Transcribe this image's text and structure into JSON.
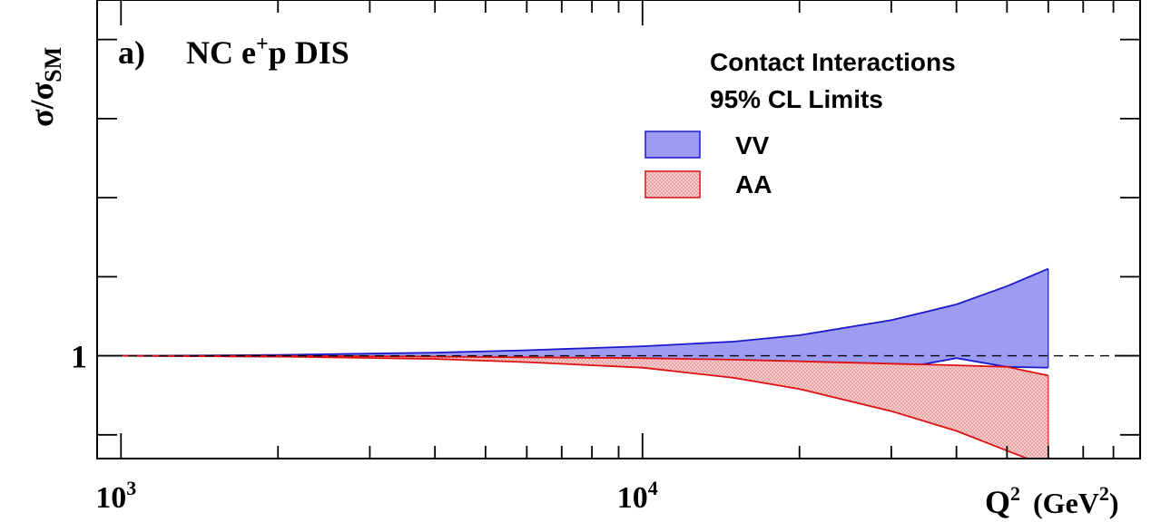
{
  "chart_data": {
    "type": "area",
    "panel_label": "a)",
    "title_parts": {
      "pre": "NC e",
      "sup": "+",
      "post": "p DIS"
    },
    "ylabel": {
      "main": "σ/σ",
      "sub": "SM"
    },
    "xlabel": {
      "q": "Q",
      "q_sup": "2",
      "unit_pre": "(GeV",
      "unit_sup": "2",
      "unit_post": ")"
    },
    "x_scale": "log",
    "xlim": [
      900,
      90000
    ],
    "ylim": [
      0.87,
      1.45
    ],
    "x_major_ticks": [
      1000,
      10000
    ],
    "x_major_tick_labels": [
      {
        "base": "10",
        "exp": "3"
      },
      {
        "base": "10",
        "exp": "4"
      }
    ],
    "y_labeled_ticks": [
      1
    ],
    "y_tick_labels": [
      "1"
    ],
    "reference_line": {
      "y": 1,
      "style": "dashed"
    },
    "legend": {
      "title_line1": "Contact Interactions",
      "title_line2": "95% CL Limits",
      "position": "top-right"
    },
    "series": [
      {
        "name": "VV",
        "fill": "#9c9cf2",
        "stroke": "#1a1acc",
        "pattern": "solid",
        "x": [
          1000,
          2000,
          4000,
          6000,
          10000,
          15000,
          20000,
          30000,
          40000,
          50000,
          60000
        ],
        "upper": [
          1.0,
          1.001,
          1.004,
          1.007,
          1.012,
          1.018,
          1.026,
          1.045,
          1.065,
          1.088,
          1.11
        ],
        "lower": [
          1.0,
          0.999,
          0.998,
          0.997,
          0.995,
          0.992,
          0.989,
          0.982,
          0.997,
          0.986,
          0.985
        ]
      },
      {
        "name": "AA",
        "fill": "#f7cccc",
        "stroke": "#dd1111",
        "pattern": "dotted",
        "x": [
          1000,
          2000,
          4000,
          6000,
          10000,
          15000,
          20000,
          30000,
          40000,
          50000,
          60000
        ],
        "upper": [
          1.0,
          1.0,
          0.999,
          0.998,
          0.997,
          0.995,
          0.993,
          0.99,
          0.988,
          0.986,
          0.975
        ],
        "lower": [
          1.0,
          0.999,
          0.996,
          0.992,
          0.985,
          0.972,
          0.958,
          0.93,
          0.905,
          0.88,
          0.86
        ]
      }
    ]
  }
}
